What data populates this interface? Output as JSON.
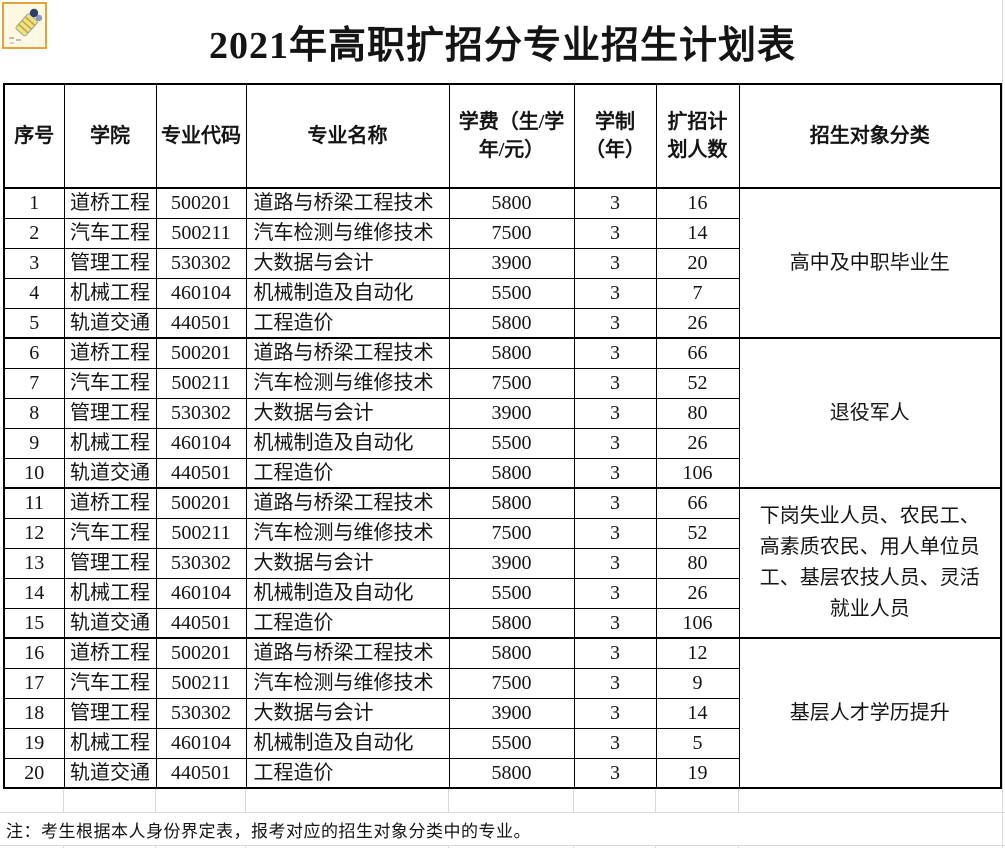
{
  "title": "2021年高职扩招分专业招生计划表",
  "corner_icon": {
    "name": "hand-stamp-icon",
    "border_color": "#e3a43b",
    "bg_color": "#fdf8e1"
  },
  "note": "注：考生根据本人身份界定表，报考对应的招生对象分类中的专业。",
  "table": {
    "headers": [
      "序号",
      "学院",
      "专业代码",
      "专业名称",
      "学费（生/学\n年/元）",
      "学制\n（年）",
      "扩招计\n划人数",
      "招生对象分类"
    ],
    "col_keys": [
      "no",
      "college",
      "major-code",
      "major-name",
      "tuition",
      "duration",
      "quota",
      "category"
    ],
    "rows": [
      [
        "1",
        "道桥工程",
        "500201",
        "道路与桥梁工程技术",
        "5800",
        "3",
        "16"
      ],
      [
        "2",
        "汽车工程",
        "500211",
        "汽车检测与维修技术",
        "7500",
        "3",
        "14"
      ],
      [
        "3",
        "管理工程",
        "530302",
        "大数据与会计",
        "3900",
        "3",
        "20"
      ],
      [
        "4",
        "机械工程",
        "460104",
        "机械制造及自动化",
        "5500",
        "3",
        "7"
      ],
      [
        "5",
        "轨道交通",
        "440501",
        "工程造价",
        "5800",
        "3",
        "26"
      ],
      [
        "6",
        "道桥工程",
        "500201",
        "道路与桥梁工程技术",
        "5800",
        "3",
        "66"
      ],
      [
        "7",
        "汽车工程",
        "500211",
        "汽车检测与维修技术",
        "7500",
        "3",
        "52"
      ],
      [
        "8",
        "管理工程",
        "530302",
        "大数据与会计",
        "3900",
        "3",
        "80"
      ],
      [
        "9",
        "机械工程",
        "460104",
        "机械制造及自动化",
        "5500",
        "3",
        "26"
      ],
      [
        "10",
        "轨道交通",
        "440501",
        "工程造价",
        "5800",
        "3",
        "106"
      ],
      [
        "11",
        "道桥工程",
        "500201",
        "道路与桥梁工程技术",
        "5800",
        "3",
        "66"
      ],
      [
        "12",
        "汽车工程",
        "500211",
        "汽车检测与维修技术",
        "7500",
        "3",
        "52"
      ],
      [
        "13",
        "管理工程",
        "530302",
        "大数据与会计",
        "3900",
        "3",
        "80"
      ],
      [
        "14",
        "机械工程",
        "460104",
        "机械制造及自动化",
        "5500",
        "3",
        "26"
      ],
      [
        "15",
        "轨道交通",
        "440501",
        "工程造价",
        "5800",
        "3",
        "106"
      ],
      [
        "16",
        "道桥工程",
        "500201",
        "道路与桥梁工程技术",
        "5800",
        "3",
        "12"
      ],
      [
        "17",
        "汽车工程",
        "500211",
        "汽车检测与维修技术",
        "7500",
        "3",
        "9"
      ],
      [
        "18",
        "管理工程",
        "530302",
        "大数据与会计",
        "3900",
        "3",
        "14"
      ],
      [
        "19",
        "机械工程",
        "460104",
        "机械制造及自动化",
        "5500",
        "3",
        "5"
      ],
      [
        "20",
        "轨道交通",
        "440501",
        "工程造价",
        "5800",
        "3",
        "19"
      ]
    ],
    "groups": [
      {
        "label": "高中及中职毕业生",
        "rows": "1-5"
      },
      {
        "label": "退役军人",
        "rows": "6-10"
      },
      {
        "label": "下岗失业人员、农民工、高素质农民、用人单位员工、基层农技人员、灵活就业人员",
        "rows": "11-15"
      },
      {
        "label": "基层人才学历提升",
        "rows": "16-20"
      }
    ]
  }
}
